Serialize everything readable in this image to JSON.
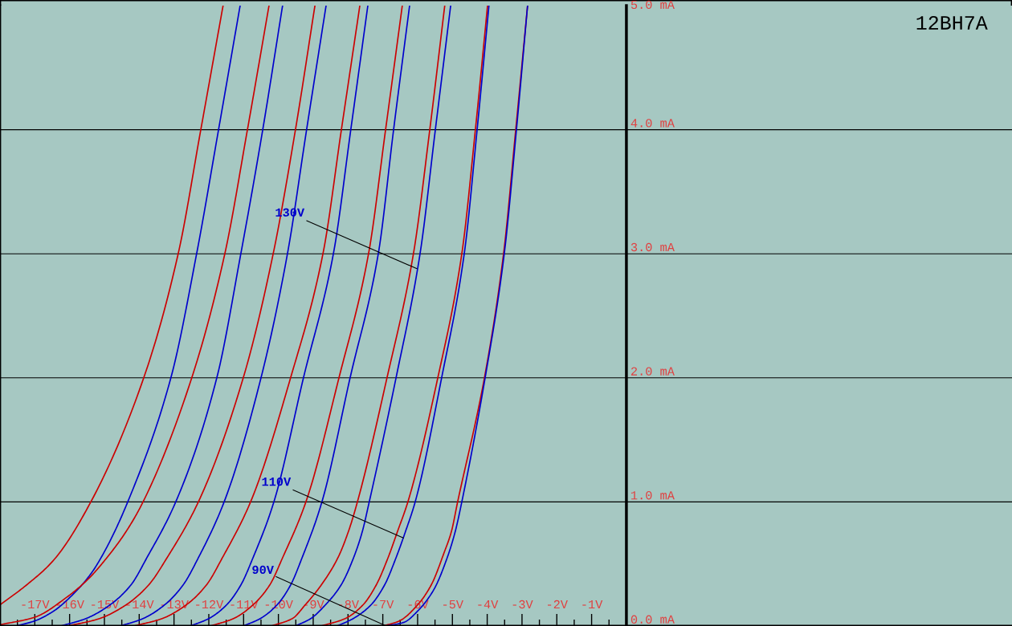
{
  "chart_data": {
    "type": "line",
    "title": "12BH7A",
    "xlim": [
      -18,
      11.08
    ],
    "ylim": [
      0,
      5
    ],
    "xticks": [
      {
        "value": -17.5,
        "label": null
      },
      {
        "value": -17,
        "label": "-17V"
      },
      {
        "value": -16.5,
        "label": null
      },
      {
        "value": -16,
        "label": "-16V"
      },
      {
        "value": -15.5,
        "label": null
      },
      {
        "value": -15,
        "label": "-15V"
      },
      {
        "value": -14.5,
        "label": null
      },
      {
        "value": -14,
        "label": "-14V"
      },
      {
        "value": -13.5,
        "label": null
      },
      {
        "value": -13,
        "label": "-13V"
      },
      {
        "value": -12.5,
        "label": null
      },
      {
        "value": -12,
        "label": "-12V"
      },
      {
        "value": -11.5,
        "label": null
      },
      {
        "value": -11,
        "label": "-11V"
      },
      {
        "value": -10.5,
        "label": null
      },
      {
        "value": -10,
        "label": "-10V"
      },
      {
        "value": -9.5,
        "label": null
      },
      {
        "value": -9,
        "label": "-9V"
      },
      {
        "value": -8.5,
        "label": null
      },
      {
        "value": -8,
        "label": "-8V"
      },
      {
        "value": -7.5,
        "label": null
      },
      {
        "value": -7,
        "label": "-7V"
      },
      {
        "value": -6.5,
        "label": null
      },
      {
        "value": -6,
        "label": "-6V"
      },
      {
        "value": -5.5,
        "label": null
      },
      {
        "value": -5,
        "label": "-5V"
      },
      {
        "value": -4.5,
        "label": null
      },
      {
        "value": -4,
        "label": "-4V"
      },
      {
        "value": -3.5,
        "label": null
      },
      {
        "value": -3,
        "label": "-3V"
      },
      {
        "value": -2.5,
        "label": null
      },
      {
        "value": -2,
        "label": "-2V"
      },
      {
        "value": -1.5,
        "label": null
      },
      {
        "value": -1,
        "label": "-1V"
      },
      {
        "value": -0.5,
        "label": null
      }
    ],
    "yticks": [
      {
        "value": 0,
        "label": "0.0 mA"
      },
      {
        "value": 1,
        "label": "1.0 mA"
      },
      {
        "value": 2,
        "label": "2.0 mA"
      },
      {
        "value": 3,
        "label": "3.0 mA"
      },
      {
        "value": 4,
        "label": "4.0 mA"
      },
      {
        "value": 5,
        "label": "5.0 mA"
      }
    ],
    "grid": "y",
    "series": [
      {
        "color": "#cc0000",
        "x": [
          -18,
          -17.24,
          -16.46,
          -15.39,
          -13.87,
          -12.88,
          -12.23,
          -11.59
        ],
        "values": [
          0.17,
          0.33,
          0.53,
          1,
          2,
          3,
          4,
          5
        ]
      },
      {
        "color": "#0000cc",
        "x": [
          -17.54,
          -17.01,
          -16.46,
          -15.92,
          -15.39,
          -14.94,
          -14.33,
          -13.09,
          -12.35,
          -11.72,
          -11.1
        ],
        "values": [
          0,
          0.04,
          0.12,
          0.25,
          0.42,
          0.63,
          1,
          2,
          3,
          4,
          5
        ]
      },
      {
        "color": "#cc0000",
        "x": [
          -18,
          -17.01,
          -16.09,
          -15.46,
          -14.93,
          -14.38,
          -13.89,
          -12.49,
          -11.54,
          -10.89,
          -10.27
        ],
        "values": [
          0.01,
          0.07,
          0.23,
          0.38,
          0.55,
          0.76,
          1,
          2,
          3,
          4,
          5
        ]
      },
      {
        "color": "#0000cc",
        "x": [
          -16.25,
          -15.53,
          -14.84,
          -14.24,
          -13.78,
          -12.95,
          -11.77,
          -11.08,
          -10.45,
          -9.88
        ],
        "values": [
          0,
          0.06,
          0.17,
          0.33,
          0.55,
          1,
          2,
          3,
          4,
          5
        ]
      },
      {
        "color": "#cc0000",
        "x": [
          -16.04,
          -15.14,
          -14.38,
          -13.73,
          -13.2,
          -12.3,
          -11.01,
          -10.15,
          -9.51,
          -8.95
        ],
        "values": [
          0,
          0.06,
          0.17,
          0.33,
          0.55,
          1,
          2,
          3,
          4,
          5
        ]
      },
      {
        "color": "#0000cc",
        "x": [
          -14.54,
          -13.89,
          -13.27,
          -12.74,
          -12.3,
          -11.56,
          -10.5,
          -9.74,
          -9.19,
          -8.63
        ],
        "values": [
          0,
          0.06,
          0.17,
          0.33,
          0.55,
          1,
          2,
          3,
          4,
          5
        ]
      },
      {
        "color": "#cc0000",
        "x": [
          -14.15,
          -13.34,
          -12.65,
          -12.07,
          -11.61,
          -10.8,
          -9.65,
          -8.72,
          -8.19,
          -7.66
        ],
        "values": [
          0,
          0.06,
          0.17,
          0.33,
          0.55,
          1,
          2,
          3,
          4,
          5
        ]
      },
      {
        "color": "#0000cc",
        "x": [
          -12.53,
          -12.0,
          -11.49,
          -11.08,
          -10.73,
          -10.13,
          -9.28,
          -8.42,
          -7.92,
          -7.43
        ],
        "values": [
          0,
          0.06,
          0.17,
          0.33,
          0.55,
          1,
          2,
          3,
          4,
          5
        ]
      },
      {
        "color": "#cc0000",
        "x": [
          -11.95,
          -11.29,
          -10.73,
          -10.25,
          -9.88,
          -9.21,
          -8.26,
          -7.41,
          -6.92,
          -6.44
        ],
        "values": [
          0,
          0.06,
          0.17,
          0.33,
          0.55,
          1,
          2,
          3,
          4,
          5
        ]
      },
      {
        "color": "#0000cc",
        "x": [
          -11.01,
          -10.52,
          -10.04,
          -9.65,
          -9.32,
          -8.75,
          -7.94,
          -7.13,
          -6.69,
          -6.23
        ],
        "values": [
          0,
          0.06,
          0.17,
          0.33,
          0.55,
          1,
          2,
          3,
          4,
          5
        ]
      },
      {
        "color": "#cc0000",
        "x": [
          -10.2,
          -9.6,
          -9.23,
          -8.77,
          -8.29,
          -7.99,
          -7.73,
          -6.88,
          -6.12,
          -5.65,
          -5.22
        ],
        "values": [
          0,
          0.06,
          0.17,
          0.33,
          0.55,
          0.76,
          1,
          2,
          3,
          4,
          5
        ]
      },
      {
        "color": "#0000cc",
        "x": [
          -9.51,
          -9.07,
          -8.65,
          -8.2,
          -7.84,
          -7.59,
          -7.39,
          -6.62,
          -5.93,
          -5.49,
          -5.05
        ],
        "values": [
          0,
          0.06,
          0.17,
          0.33,
          0.55,
          0.76,
          1,
          2,
          3,
          4,
          5
        ]
      },
      {
        "color": "#cc0000",
        "x": [
          -8.77,
          -8.08,
          -7.57,
          -7.19,
          -6.85,
          -6.58,
          -6.28,
          -5.42,
          -4.73,
          -4.34,
          -3.99
        ],
        "values": [
          0,
          0.06,
          0.17,
          0.33,
          0.55,
          0.76,
          1,
          2,
          3,
          4,
          5
        ]
      },
      {
        "color": "#0000cc",
        "x": [
          -8.31,
          -7.85,
          -7.34,
          -6.95,
          -6.62,
          -6.35,
          -6.07,
          -5.31,
          -4.66,
          -4.29,
          -3.95
        ],
        "values": [
          0,
          0.06,
          0.17,
          0.33,
          0.55,
          0.76,
          1,
          2,
          3,
          4,
          5
        ]
      },
      {
        "color": "#cc0000",
        "x": [
          -6.99,
          -6.53,
          -6.0,
          -5.61,
          -5.24,
          -5.03,
          -4.85,
          -4.08,
          -3.53,
          -3.18,
          -2.84
        ],
        "values": [
          0,
          0.04,
          0.17,
          0.33,
          0.59,
          0.76,
          1,
          2,
          3,
          4,
          5
        ]
      },
      {
        "color": "#0000cc",
        "x": [
          -6.9,
          -6.39,
          -6.0,
          -5.54,
          -5.15,
          -4.92,
          -4.73,
          -4.06,
          -3.51,
          -3.16,
          -2.84
        ],
        "values": [
          0,
          0.03,
          0.12,
          0.29,
          0.55,
          0.76,
          1,
          2,
          3,
          4,
          5
        ]
      }
    ],
    "annotations": [
      {
        "text": "130V",
        "x": -6.02,
        "y": 2.88
      },
      {
        "text": "110V",
        "x": -6.41,
        "y": 0.71
      },
      {
        "text": "90V",
        "x": -6.9,
        "y": 0
      }
    ]
  }
}
